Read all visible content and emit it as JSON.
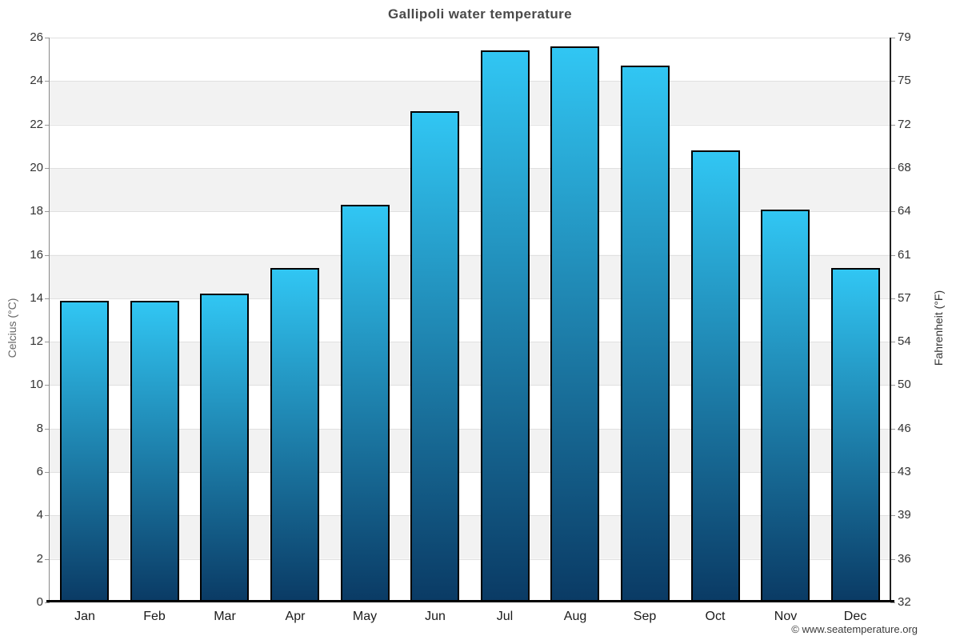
{
  "title": "Gallipoli water temperature",
  "credit": "© www.seatemperature.org",
  "axes": {
    "left_title": "Celcius (°C)",
    "right_title": "Fahrenheit (°F)",
    "celsius_ticks": [
      "26",
      "24",
      "22",
      "20",
      "18",
      "16",
      "14",
      "12",
      "10",
      "8",
      "6",
      "4",
      "2",
      "0"
    ],
    "fahrenheit_ticks": [
      "79",
      "75",
      "72",
      "68",
      "64",
      "61",
      "57",
      "54",
      "50",
      "46",
      "43",
      "39",
      "36",
      "32"
    ]
  },
  "chart_data": {
    "type": "bar",
    "title": "Gallipoli water temperature",
    "categories": [
      "Jan",
      "Feb",
      "Mar",
      "Apr",
      "May",
      "Jun",
      "Jul",
      "Aug",
      "Sep",
      "Oct",
      "Nov",
      "Dec"
    ],
    "values": [
      13.9,
      13.9,
      14.2,
      15.4,
      18.3,
      22.6,
      25.4,
      25.6,
      24.7,
      20.8,
      18.1,
      15.4
    ],
    "xlabel": "",
    "ylabel": "Celcius (°C)",
    "y2label": "Fahrenheit (°F)",
    "ylim": [
      0,
      26
    ],
    "y2lim": [
      32,
      79
    ],
    "grid": true,
    "legend_position": "none",
    "band_colors": [
      "#ffffff",
      "#f2f2f2"
    ]
  },
  "colors": {
    "bar_gradient_top": "#31c6f3",
    "bar_gradient_bottom": "#0a3a64",
    "bar_border": "#000000",
    "gridline": "#e0e0e0",
    "band_gray": "#f2f2f2",
    "title_text": "#4a4a4a",
    "tick_text": "#333333"
  }
}
